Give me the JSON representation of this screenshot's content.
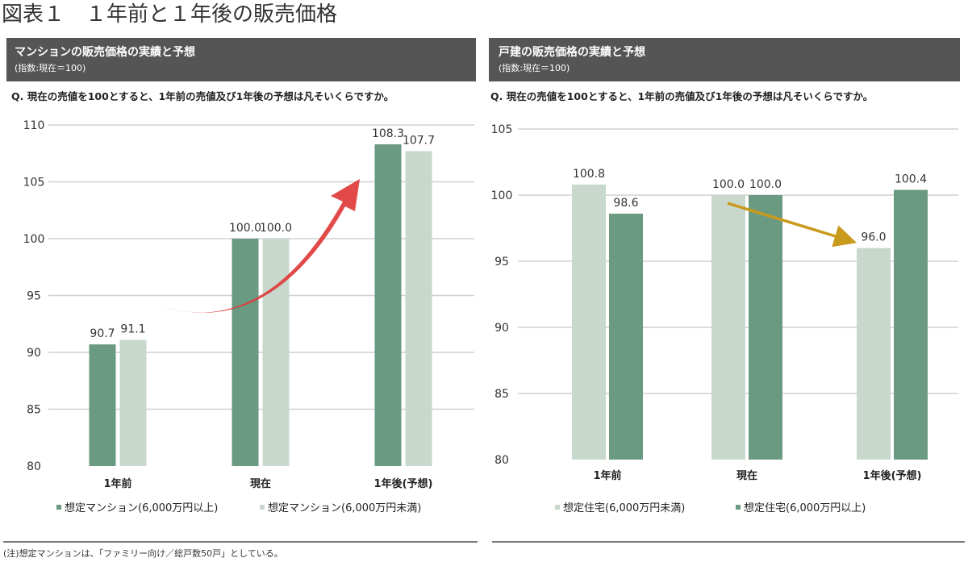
{
  "figure_title": "図表１　１年前と１年後の販売価格",
  "footnote": "(注)想定マンションは、「ファミリー向け／総戸数50戸」としている。",
  "colors": {
    "dark": "#6b9a82",
    "light": "#c8d8cd",
    "header": "#555555",
    "grid": "#d0d0d0",
    "red_arrow": "#e03a3a",
    "gold_arrow": "#c99a1c"
  },
  "chart_data": [
    {
      "type": "bar",
      "title": "マンションの販売価格の実績と予想",
      "subtitle": "(指数:現在＝100)",
      "question": "Q. 現在の売値を100とすると、1年前の売値及び1年後の予想は凡そいくらですか。",
      "categories": [
        "1年前",
        "現在",
        "1年後(予想)"
      ],
      "series": [
        {
          "name": "想定マンション(6,000万円以上)",
          "color": "dark",
          "values": [
            90.7,
            100.0,
            108.3
          ],
          "labels": [
            "90.7",
            "100.0",
            "108.3"
          ]
        },
        {
          "name": "想定マンション(6,000万円未満)",
          "color": "light",
          "values": [
            91.1,
            100.0,
            107.7
          ],
          "labels": [
            "91.1",
            "100.0",
            "107.7"
          ]
        }
      ],
      "ylim": [
        80,
        110
      ],
      "yticks": [
        "80",
        "85",
        "90",
        "95",
        "100",
        "105",
        "110"
      ],
      "grid": true,
      "legend": "bottom",
      "annotation": "red upward arrow from 1年前 to 1年後"
    },
    {
      "type": "bar",
      "title": "戸建の販売価格の実績と予想",
      "subtitle": "(指数:現在＝100)",
      "question": "Q. 現在の売値を100とすると、1年前の売値及び1年後の予想は凡そいくらですか。",
      "categories": [
        "1年前",
        "現在",
        "1年後(予想)"
      ],
      "series": [
        {
          "name": "想定住宅(6,000万円未満)",
          "color": "light",
          "values": [
            100.8,
            100.0,
            96.0
          ],
          "labels": [
            "100.8",
            "100.0",
            "96.0"
          ]
        },
        {
          "name": "想定住宅(6,000万円以上)",
          "color": "dark",
          "values": [
            98.6,
            100.0,
            100.4
          ],
          "labels": [
            "98.6",
            "100.0",
            "100.4"
          ]
        }
      ],
      "ylim": [
        80,
        105
      ],
      "yticks": [
        "80",
        "85",
        "90",
        "95",
        "100",
        "105"
      ],
      "grid": true,
      "legend": "bottom",
      "annotation": "gold downward arrow from 現在 to 1年後"
    }
  ]
}
